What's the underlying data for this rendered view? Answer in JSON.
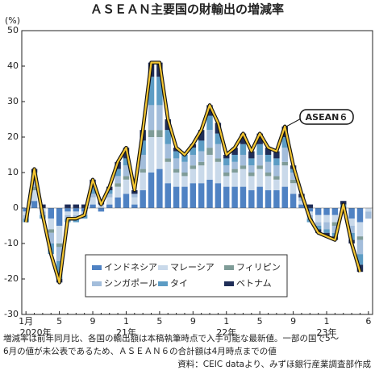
{
  "chart_data": {
    "type": "bar",
    "title": "ＡＳＥＡＮ主要国の財輸出の増減率",
    "y_unit": "(%)",
    "categories": [
      "1月",
      null,
      null,
      null,
      "5",
      null,
      null,
      null,
      "9",
      null,
      null,
      null,
      "1",
      null,
      null,
      null,
      "5",
      null,
      null,
      null,
      "9",
      null,
      null,
      null,
      "1",
      null,
      null,
      null,
      "5",
      null,
      null,
      null,
      "9",
      null,
      null,
      null,
      "1",
      null,
      null,
      null,
      null,
      "6"
    ],
    "year_labels": [
      "2020年",
      "21年",
      "22年",
      "23年"
    ],
    "ylim": [
      -30,
      50
    ],
    "yticks": [
      -30,
      -20,
      -10,
      0,
      10,
      20,
      30,
      40,
      50
    ],
    "grid": false,
    "series": [
      {
        "name": "インドネシア",
        "color": "#4f82c3",
        "values": [
          -1,
          2,
          0,
          -3,
          -5,
          -1,
          -1,
          -1,
          1,
          -1,
          1,
          3,
          4,
          1,
          5,
          10,
          11,
          7,
          6,
          6,
          7,
          7,
          8,
          7,
          6,
          6,
          6,
          5,
          6,
          5,
          5,
          6,
          4,
          1,
          -1,
          -2,
          -2,
          -2,
          -1,
          -3,
          -4,
          0
        ]
      },
      {
        "name": "マレーシア",
        "color": "#c9d9ea",
        "values": [
          -1,
          3,
          -1,
          -3,
          -5,
          -1,
          -1,
          0,
          2,
          1,
          2,
          3,
          4,
          2,
          5,
          10,
          9,
          6,
          4,
          3,
          4,
          5,
          7,
          6,
          3,
          4,
          5,
          4,
          5,
          4,
          3,
          6,
          3,
          1,
          -1,
          -2,
          -2,
          -2,
          0,
          -2,
          -4,
          -1
        ]
      },
      {
        "name": "フィリピン",
        "color": "#7f9c98",
        "values": [
          0,
          1,
          0,
          -1,
          -1,
          0,
          0,
          0,
          0,
          0,
          0,
          1,
          1,
          0,
          1,
          2,
          2,
          1,
          1,
          1,
          1,
          1,
          2,
          1,
          1,
          1,
          1,
          1,
          1,
          1,
          1,
          1,
          1,
          0,
          0,
          0,
          0,
          -1,
          0,
          0,
          -1,
          0
        ]
      },
      {
        "name": "シンガポール",
        "color": "#a3bddb",
        "values": [
          -1,
          2,
          -1,
          -3,
          -4,
          -1,
          -1,
          -1,
          1,
          0,
          1,
          2,
          3,
          1,
          4,
          7,
          7,
          4,
          3,
          3,
          3,
          3,
          5,
          4,
          2,
          2,
          3,
          2,
          3,
          3,
          3,
          4,
          2,
          1,
          -1,
          -1,
          -2,
          -2,
          0,
          -2,
          -4,
          -2
        ]
      },
      {
        "name": "タイ",
        "color": "#5c9cc4",
        "values": [
          -1,
          2,
          -1,
          -3,
          -5,
          -1,
          -1,
          -1,
          2,
          0,
          1,
          2,
          2,
          0,
          4,
          8,
          8,
          4,
          2,
          2,
          2,
          3,
          4,
          3,
          2,
          2,
          3,
          2,
          3,
          2,
          2,
          3,
          1,
          0,
          -1,
          -1,
          -1,
          -1,
          1,
          -2,
          -3,
          0
        ]
      },
      {
        "name": "ベトナム",
        "color": "#1f2d57",
        "values": [
          0,
          1,
          1,
          0,
          -1,
          1,
          1,
          1,
          2,
          1,
          1,
          2,
          3,
          1,
          3,
          4,
          4,
          3,
          1,
          0,
          1,
          3,
          3,
          3,
          1,
          2,
          3,
          2,
          3,
          2,
          2,
          3,
          1,
          1,
          1,
          -1,
          -1,
          -1,
          1,
          -1,
          -2,
          0
        ]
      }
    ],
    "line": {
      "name": "ASEAN６",
      "color": "#f3c531",
      "values": [
        -4,
        11,
        -2,
        -13,
        -21,
        -3,
        -3,
        -2,
        8,
        1,
        6,
        13,
        17,
        5,
        22,
        41,
        41,
        25,
        17,
        15,
        18,
        22,
        29,
        24,
        15,
        17,
        21,
        16,
        21,
        17,
        16,
        23,
        12,
        4,
        -3,
        -7,
        -8,
        -9,
        1,
        -10,
        -18,
        null
      ]
    },
    "notes": [
      "増減率は前年同月比、各国の輸出額は本稿執筆時点で入手可能な最新値。一部の国で5～",
      "6月の値が未公表であるため、ＡＳＥＡＮ６の合計額は4月時点までの値",
      "資料：CEIC dataより、みずほ銀行産業調査部作成"
    ]
  }
}
